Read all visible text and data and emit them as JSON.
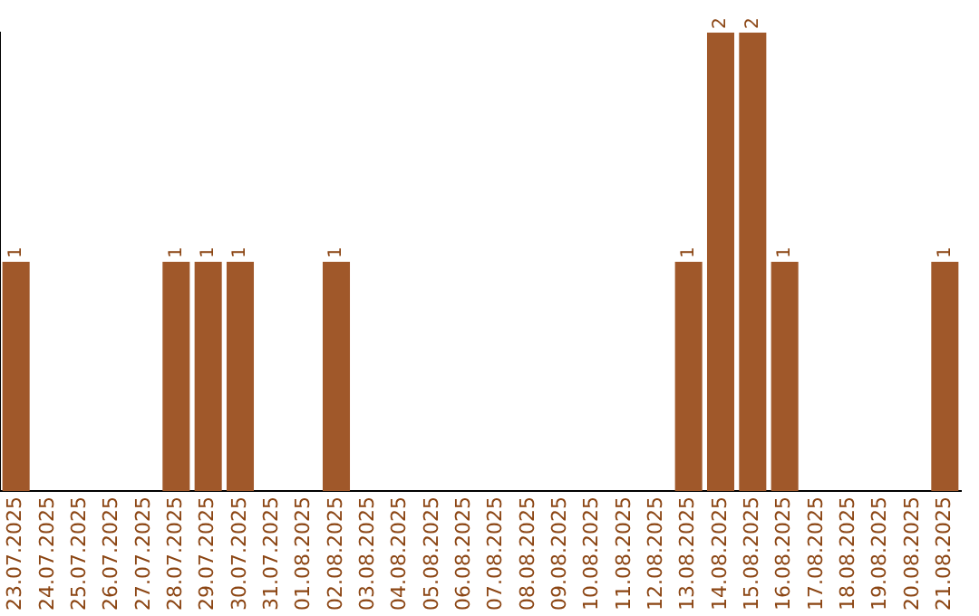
{
  "chart_data": {
    "type": "bar",
    "categories": [
      "23.07.2025",
      "24.07.2025",
      "25.07.2025",
      "26.07.2025",
      "27.07.2025",
      "28.07.2025",
      "29.07.2025",
      "30.07.2025",
      "31.07.2025",
      "01.08.2025",
      "02.08.2025",
      "03.08.2025",
      "04.08.2025",
      "05.08.2025",
      "06.08.2025",
      "07.08.2025",
      "08.08.2025",
      "09.08.2025",
      "10.08.2025",
      "11.08.2025",
      "12.08.2025",
      "13.08.2025",
      "14.08.2025",
      "15.08.2025",
      "16.08.2025",
      "17.08.2025",
      "18.08.2025",
      "19.08.2025",
      "20.08.2025",
      "21.08.2025"
    ],
    "values": [
      1,
      0,
      0,
      0,
      0,
      1,
      1,
      1,
      0,
      0,
      1,
      0,
      0,
      0,
      0,
      0,
      0,
      0,
      0,
      0,
      0,
      1,
      2,
      2,
      1,
      0,
      0,
      0,
      0,
      1
    ],
    "value_labels": [
      "1",
      null,
      null,
      null,
      null,
      "1",
      "1",
      "1",
      null,
      null,
      "1",
      null,
      null,
      null,
      null,
      null,
      null,
      null,
      null,
      null,
      null,
      "1",
      "2",
      "2",
      "1",
      null,
      null,
      null,
      null,
      "1"
    ],
    "color": "#a0582a"
  }
}
